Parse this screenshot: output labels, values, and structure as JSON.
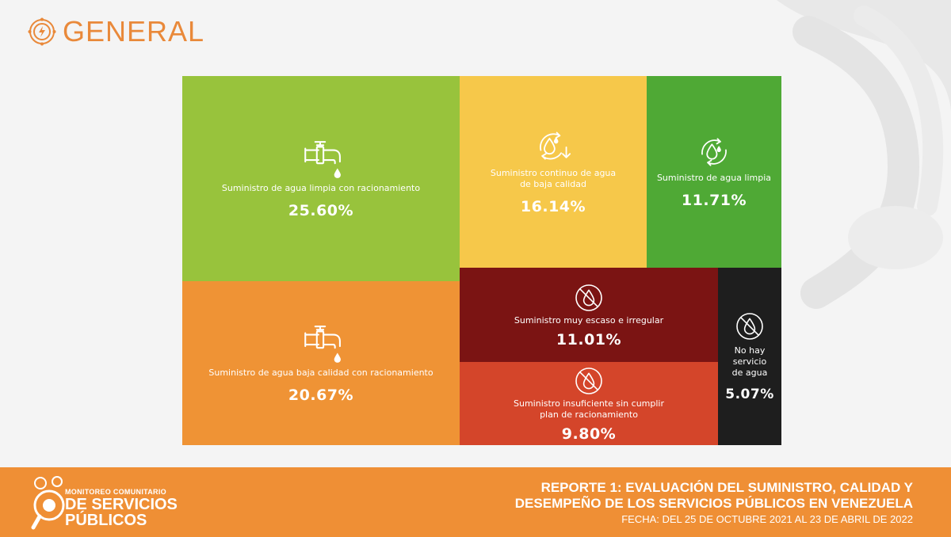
{
  "header": {
    "title": "GENERAL"
  },
  "chart_data": {
    "type": "treemap",
    "items": [
      {
        "id": "limpia-racionamiento",
        "label": "Suministro de agua limpia con racionamiento",
        "value_text": "25.60%",
        "value": 25.6,
        "color": "#98c33c",
        "icon": "faucet-icon"
      },
      {
        "id": "baja-calidad-racionamiento",
        "label": "Suministro de agua baja calidad con racionamiento",
        "value_text": "20.67%",
        "value": 20.67,
        "color": "#ef9335",
        "icon": "faucet-icon"
      },
      {
        "id": "continuo-baja-calidad",
        "label": "Suministro continuo de agua\nde baja calidad",
        "value_text": "16.14%",
        "value": 16.14,
        "color": "#f6c84a",
        "icon": "water-drop-down-icon"
      },
      {
        "id": "agua-limpia",
        "label": "Suministro de agua limpia",
        "value_text": "11.71%",
        "value": 11.71,
        "color": "#4fa935",
        "icon": "water-drop-cycle-icon"
      },
      {
        "id": "muy-escaso",
        "label": "Suministro muy escaso e irregular",
        "value_text": "11.01%",
        "value": 11.01,
        "color": "#7b1413",
        "icon": "no-water-icon"
      },
      {
        "id": "insuficiente",
        "label": "Suministro insuficiente sin cumplir\nplan de racionamiento",
        "value_text": "9.80%",
        "value": 9.8,
        "color": "#d4452a",
        "icon": "no-water-icon"
      },
      {
        "id": "no-hay",
        "label": "No hay\nservicio\nde agua",
        "value_text": "5.07%",
        "value": 5.07,
        "color": "#1e1e1e",
        "icon": "no-water-icon"
      }
    ]
  },
  "footer": {
    "logo": {
      "line1": "MONITOREO COMUNITARIO",
      "line2": "DE SERVICIOS",
      "line3": "PÚBLICOS"
    },
    "report_title": "REPORTE 1: EVALUACIÓN DEL SUMINISTRO, CALIDAD Y\nDESEMPEÑO DE LOS SERVICIOS PÚBLICOS EN VENEZUELA",
    "report_date": "FECHA: DEL 25 DE OCTUBRE 2021 AL 23 DE ABRIL DE 2022"
  }
}
